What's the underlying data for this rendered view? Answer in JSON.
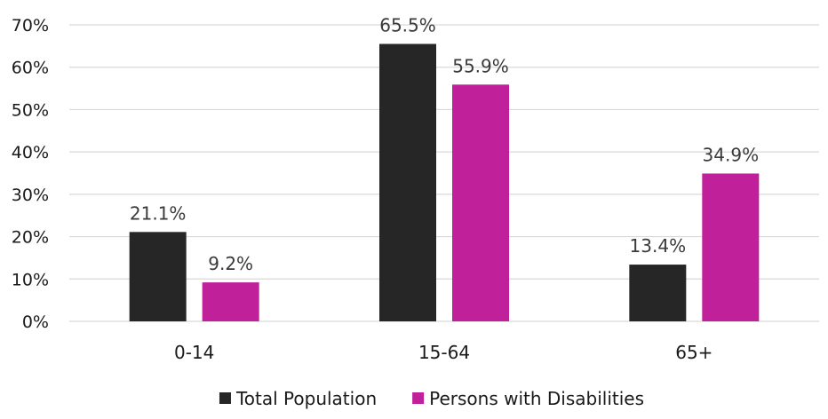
{
  "chart_data": {
    "type": "bar",
    "title": "",
    "xlabel": "",
    "ylabel": "",
    "categories": [
      "0-14",
      "15-64",
      "65+"
    ],
    "series": [
      {
        "name": "Total Population",
        "values": [
          21.1,
          65.5,
          13.4
        ],
        "labels": [
          "21.1%",
          "65.5%",
          "13.4%"
        ],
        "color": "#262626"
      },
      {
        "name": "Persons with Disabilities",
        "values": [
          9.2,
          55.9,
          34.9
        ],
        "labels": [
          "9.2%",
          "55.9%",
          "34.9%"
        ],
        "color": "#c0209a"
      }
    ],
    "ylim": [
      0,
      70
    ],
    "yticks": [
      0,
      10,
      20,
      30,
      40,
      50,
      60,
      70
    ],
    "ytick_labels": [
      "0%",
      "10%",
      "20%",
      "30%",
      "40%",
      "50%",
      "60%",
      "70%"
    ],
    "grid": true,
    "legend_position": "bottom"
  }
}
